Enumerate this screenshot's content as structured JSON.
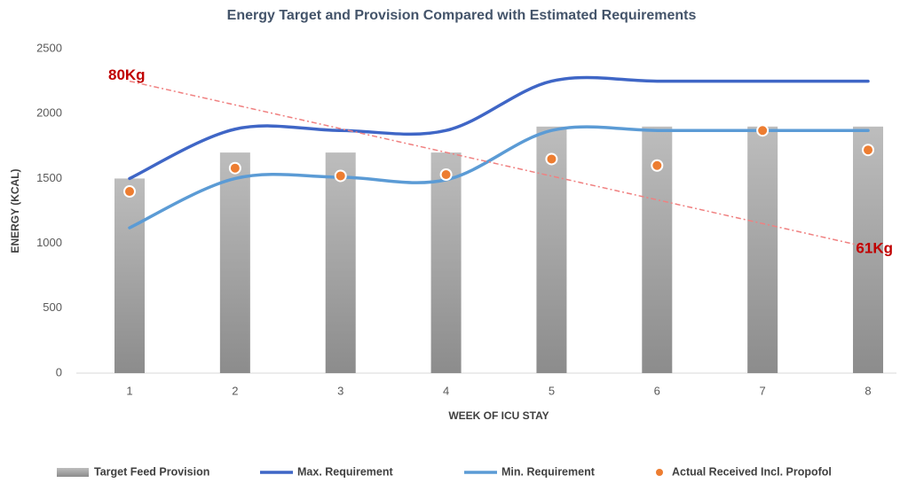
{
  "chart_data": {
    "type": "bar",
    "title": "Energy Target and Provision Compared with Estimated Requirements",
    "x_label": "WEEK OF ICU STAY",
    "y_label": "ENERGY (KCAL)",
    "categories": [
      "1",
      "2",
      "3",
      "4",
      "5",
      "6",
      "7",
      "8"
    ],
    "ylim": [
      0,
      2500
    ],
    "yticks": [
      0,
      500,
      1000,
      1500,
      2000,
      2500
    ],
    "grid": false,
    "legend": "bottom",
    "series": [
      {
        "name": "Target Feed Provision",
        "type": "bar",
        "color": "#a6a6a6",
        "values": [
          1500,
          1700,
          1700,
          1700,
          1900,
          1900,
          1900,
          1900
        ]
      },
      {
        "name": "Max. Requirement",
        "type": "line",
        "color": "#3f66c6",
        "values": [
          1500,
          1880,
          1870,
          1870,
          2250,
          2250,
          2250,
          2250
        ]
      },
      {
        "name": "Min. Requirement",
        "type": "line",
        "color": "#5b9bd5",
        "values": [
          1120,
          1500,
          1510,
          1490,
          1870,
          1870,
          1870,
          1870
        ]
      },
      {
        "name": "Actual Received Incl. Propofol",
        "type": "scatter",
        "color": "#ed7d31",
        "values": [
          1400,
          1580,
          1520,
          1530,
          1650,
          1600,
          1870,
          1720
        ]
      }
    ],
    "trend": {
      "color": "#f08080",
      "x": [
        1,
        8
      ],
      "values": [
        2250,
        970
      ]
    },
    "annotations": [
      "80Kg",
      "61Kg"
    ]
  }
}
